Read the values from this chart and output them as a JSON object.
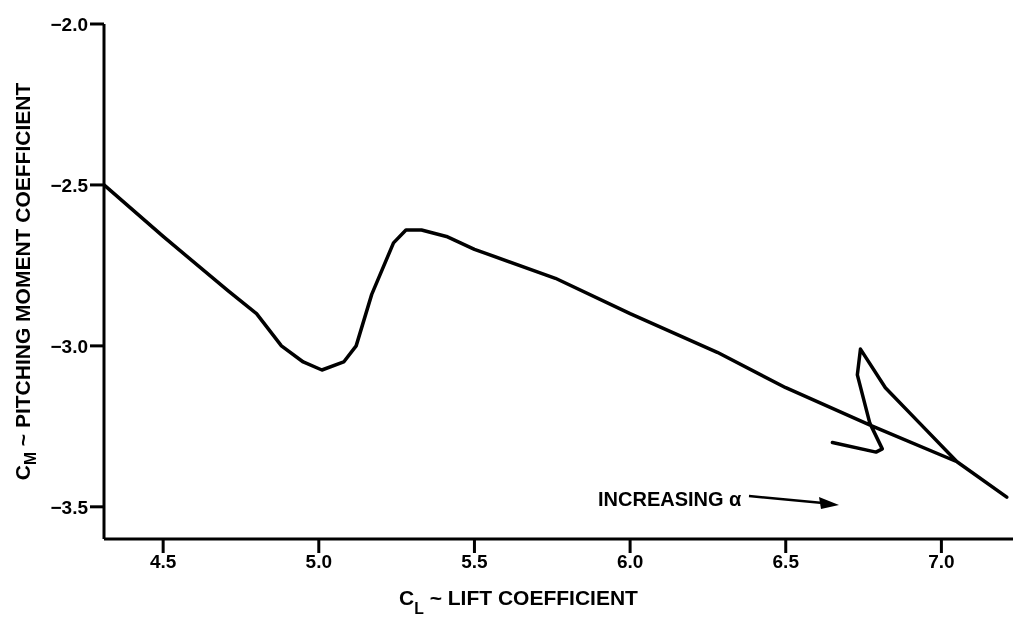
{
  "chart_data": {
    "type": "line",
    "xlabel": "C$_{L}$ ~ LIFT COEFFICIENT",
    "ylabel": "C$_{M}$ ~ PITCHING MOMENT COEFFICIENT",
    "xlim": [
      4.31,
      7.23
    ],
    "xticks": [
      4.5,
      {
        "value": 5,
        "label": "5.0"
      },
      5.5,
      {
        "value": 6,
        "label": "6.0"
      },
      6.5,
      {
        "value": 7,
        "label": "7.0"
      }
    ],
    "ylim": [
      -3.6,
      -2.0
    ],
    "yticks": [
      {
        "value": -3.5,
        "label": "−3.5"
      },
      {
        "value": -3,
        "label": "−3.0"
      },
      {
        "value": -2.5,
        "label": "−2.5"
      },
      {
        "value": -2,
        "label": "−2.0"
      }
    ],
    "marker": "none",
    "line_style": "solid",
    "grid": false,
    "legend": false,
    "annotations": [
      "INCREASING α"
    ],
    "series": [
      {
        "color": "#000000",
        "x": [
          4.31,
          4.5,
          4.71,
          4.8,
          4.88,
          4.95,
          5.01,
          5.08,
          5.12,
          5.17,
          5.24,
          5.28,
          5.33,
          5.41,
          5.5,
          5.76,
          6.0,
          6.28,
          6.5,
          6.78,
          7.05,
          7.21,
          7.05,
          6.93,
          6.82,
          6.74,
          6.73,
          6.77,
          6.81,
          6.79,
          6.65
        ],
        "values": [
          -2.5,
          -2.66,
          -2.83,
          -2.9,
          -3.0,
          -3.05,
          -3.075,
          -3.05,
          -3.0,
          -2.84,
          -2.68,
          -2.64,
          -2.64,
          -2.66,
          -2.7,
          -2.79,
          -2.9,
          -3.02,
          -3.13,
          -3.25,
          -3.36,
          -3.47,
          -3.36,
          -3.24,
          -3.13,
          -3.01,
          -3.09,
          -3.24,
          -3.32,
          -3.33,
          -3.3
        ]
      }
    ]
  }
}
